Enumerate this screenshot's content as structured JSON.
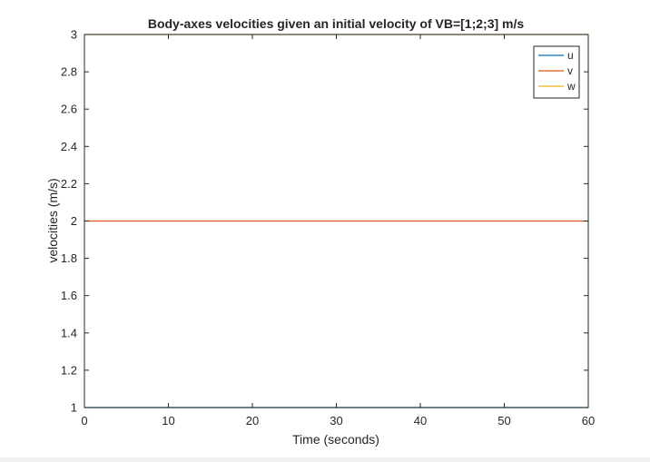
{
  "chart_data": {
    "type": "line",
    "title": "Body-axes velocities given an initial velocity of VB=[1;2;3] m/s",
    "xlabel": "Time (seconds)",
    "ylabel": "velocities (m/s)",
    "xlim": [
      0,
      60
    ],
    "ylim": [
      1,
      3
    ],
    "x_ticks": [
      0,
      10,
      20,
      30,
      40,
      50,
      60
    ],
    "y_ticks": [
      1,
      1.2,
      1.4,
      1.6,
      1.8,
      2,
      2.2,
      2.4,
      2.6,
      2.8,
      3
    ],
    "grid": false,
    "legend_position": "top-right",
    "x": [
      0,
      60
    ],
    "series": [
      {
        "name": "u",
        "values": [
          1,
          1
        ],
        "color": "#0072bd"
      },
      {
        "name": "v",
        "values": [
          2,
          2
        ],
        "color": "#d95319"
      },
      {
        "name": "w",
        "values": [
          3,
          3
        ],
        "color": "#edb120"
      }
    ]
  }
}
